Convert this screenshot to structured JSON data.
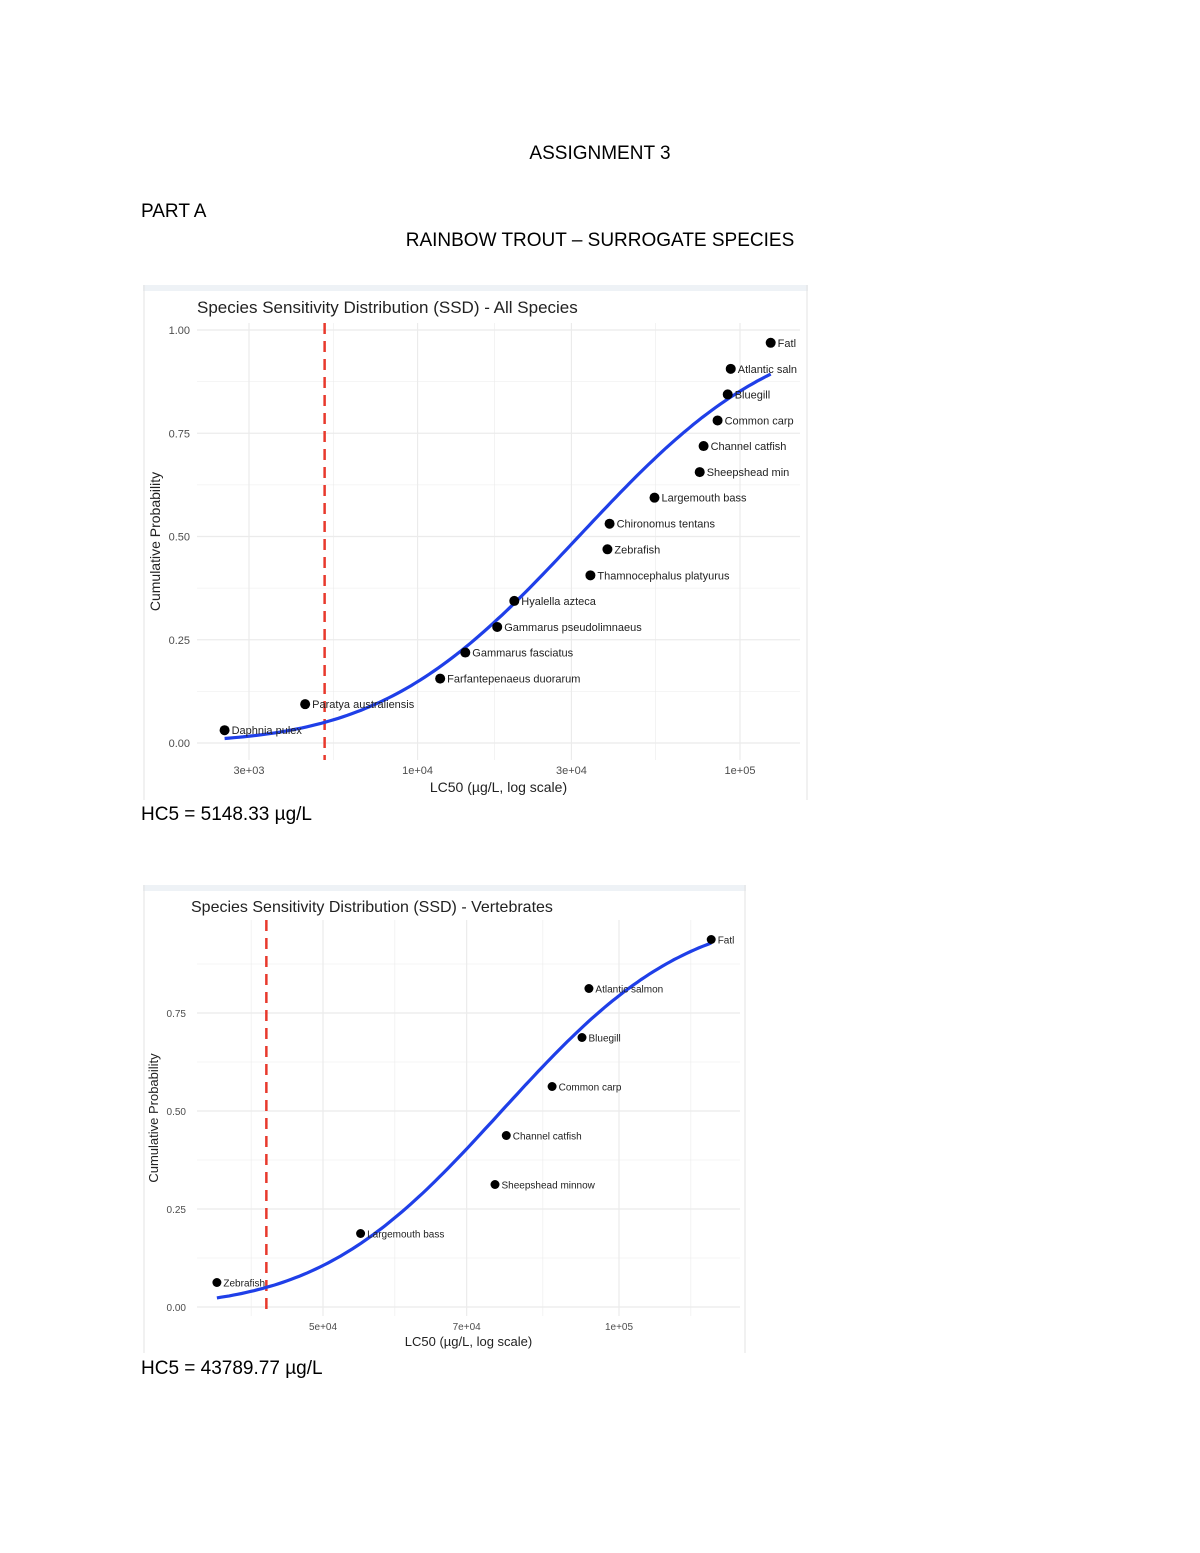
{
  "document": {
    "heading": "ASSIGNMENT 3",
    "part": "PART A",
    "subheading": "RAINBOW TROUT – SURROGATE SPECIES",
    "hc5_all": "HC5 = 5148.33 µg/L",
    "hc5_vertebrates": "HC5 = 43789.77 µg/L"
  },
  "colors": {
    "points": "#000000",
    "fit_curve": "#1f3fe8",
    "hc5_line": "#e8392c",
    "grid": "#ebebeb"
  },
  "chart_data": [
    {
      "type": "scatter",
      "title": "Species Sensitivity Distribution (SSD) - All Species",
      "xlabel": "LC50 (µg/L, log scale)",
      "ylabel": "Cumulative Probability",
      "x_scale": "log",
      "xticks": [
        3000,
        10000,
        30000,
        100000
      ],
      "xtick_labels": [
        "3e+03",
        "1e+04",
        "3e+04",
        "1e+05"
      ],
      "yticks": [
        0,
        0.25,
        0.5,
        0.75,
        1
      ],
      "ytick_labels": [
        "0.00",
        "0.25",
        "0.50",
        "0.75",
        "1.00"
      ],
      "grid": true,
      "legend": "none",
      "hc5_line": {
        "x": 5148.33,
        "style": "dashed"
      },
      "fit": "log-normal CDF",
      "points": [
        {
          "label": "Daphnia pulex",
          "x": 2520,
          "y": 0.031
        },
        {
          "label": "Paratya australiensis",
          "x": 4480,
          "y": 0.094
        },
        {
          "label": "Farfantepenaeus duorarum",
          "x": 11750,
          "y": 0.156
        },
        {
          "label": "Gammarus fasciatus",
          "x": 14060,
          "y": 0.219
        },
        {
          "label": "Gammarus pseudolimnaeus",
          "x": 17660,
          "y": 0.281
        },
        {
          "label": "Hyalella azteca",
          "x": 19950,
          "y": 0.344
        },
        {
          "label": "Thamnocephalus platyurus",
          "x": 34360,
          "y": 0.406
        },
        {
          "label": "Zebrafish",
          "x": 38800,
          "y": 0.469
        },
        {
          "label": "Chironomus tentans",
          "x": 39400,
          "y": 0.531
        },
        {
          "label": "Largemouth bass",
          "x": 54300,
          "y": 0.594
        },
        {
          "label": "Sheepshead min",
          "x": 75000,
          "y": 0.656
        },
        {
          "label": "Channel catfish",
          "x": 77100,
          "y": 0.719
        },
        {
          "label": "Common carp",
          "x": 85200,
          "y": 0.781
        },
        {
          "label": "Bluegill",
          "x": 91600,
          "y": 0.844
        },
        {
          "label": "Atlantic saln",
          "x": 93600,
          "y": 0.906
        },
        {
          "label": "Fatl",
          "x": 124500,
          "y": 0.969
        }
      ]
    },
    {
      "type": "scatter",
      "title": "Species Sensitivity Distribution (SSD) - Vertebrates",
      "xlabel": "LC50 (µg/L, log scale)",
      "ylabel": "Cumulative Probability",
      "x_scale": "log",
      "xticks": [
        50000,
        70000,
        100000
      ],
      "xtick_labels": [
        "5e+04",
        "7e+04",
        "1e+05"
      ],
      "yticks": [
        0,
        0.25,
        0.5,
        0.75
      ],
      "ytick_labels": [
        "0.00",
        "0.25",
        "0.50",
        "0.75"
      ],
      "grid": true,
      "legend": "none",
      "hc5_line": {
        "x": 43789.77,
        "style": "dashed"
      },
      "fit": "log-normal CDF",
      "points": [
        {
          "label": "Zebrafish",
          "x": 39000,
          "y": 0.0625
        },
        {
          "label": "Largemouth bass",
          "x": 54600,
          "y": 0.1875
        },
        {
          "label": "Sheepshead minnow",
          "x": 74800,
          "y": 0.3125
        },
        {
          "label": "Channel catfish",
          "x": 76800,
          "y": 0.4375
        },
        {
          "label": "Common carp",
          "x": 85500,
          "y": 0.5625
        },
        {
          "label": "Bluegill",
          "x": 91700,
          "y": 0.6875
        },
        {
          "label": "Atlantic salmon",
          "x": 93200,
          "y": 0.8125
        },
        {
          "label": "Fatl",
          "x": 124100,
          "y": 0.9375
        }
      ]
    }
  ]
}
